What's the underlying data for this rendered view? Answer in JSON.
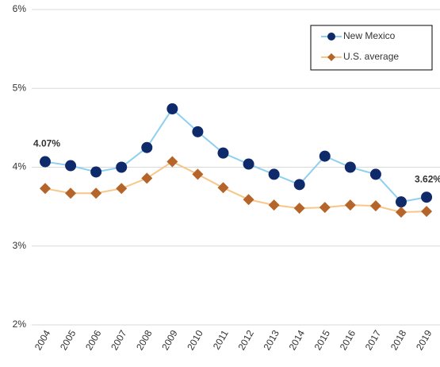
{
  "chart_data": {
    "type": "line",
    "categories": [
      "2004",
      "2005",
      "2006",
      "2007",
      "2008",
      "2009",
      "2010",
      "2011",
      "2012",
      "2013",
      "2014",
      "2015",
      "2016",
      "2017",
      "2018",
      "2019"
    ],
    "series": [
      {
        "name": "New Mexico",
        "color": "#8fd0f0",
        "marker_color": "#0e2a6b",
        "marker": "circle",
        "values": [
          4.07,
          4.02,
          3.94,
          4.0,
          4.25,
          4.74,
          4.45,
          4.18,
          4.04,
          3.91,
          3.78,
          4.14,
          4.0,
          3.91,
          3.56,
          3.62
        ],
        "value_labels": [
          "4.07%",
          null,
          null,
          null,
          null,
          null,
          null,
          null,
          null,
          null,
          null,
          null,
          null,
          null,
          null,
          "3.62%"
        ]
      },
      {
        "name": "U.S. average",
        "color": "#f7c68a",
        "marker_color": "#b5652a",
        "marker": "diamond",
        "values": [
          3.73,
          3.67,
          3.67,
          3.73,
          3.86,
          4.07,
          3.91,
          3.74,
          3.59,
          3.52,
          3.48,
          3.49,
          3.52,
          3.51,
          3.43,
          3.44
        ]
      }
    ],
    "ylim": [
      2,
      6
    ],
    "yticks": [
      {
        "value": 2,
        "label": "2%"
      },
      {
        "value": 3,
        "label": "3%"
      },
      {
        "value": 4,
        "label": "4%"
      },
      {
        "value": 5,
        "label": "5%"
      },
      {
        "value": 6,
        "label": "6%"
      }
    ],
    "grid": true,
    "legend": "top-right"
  }
}
